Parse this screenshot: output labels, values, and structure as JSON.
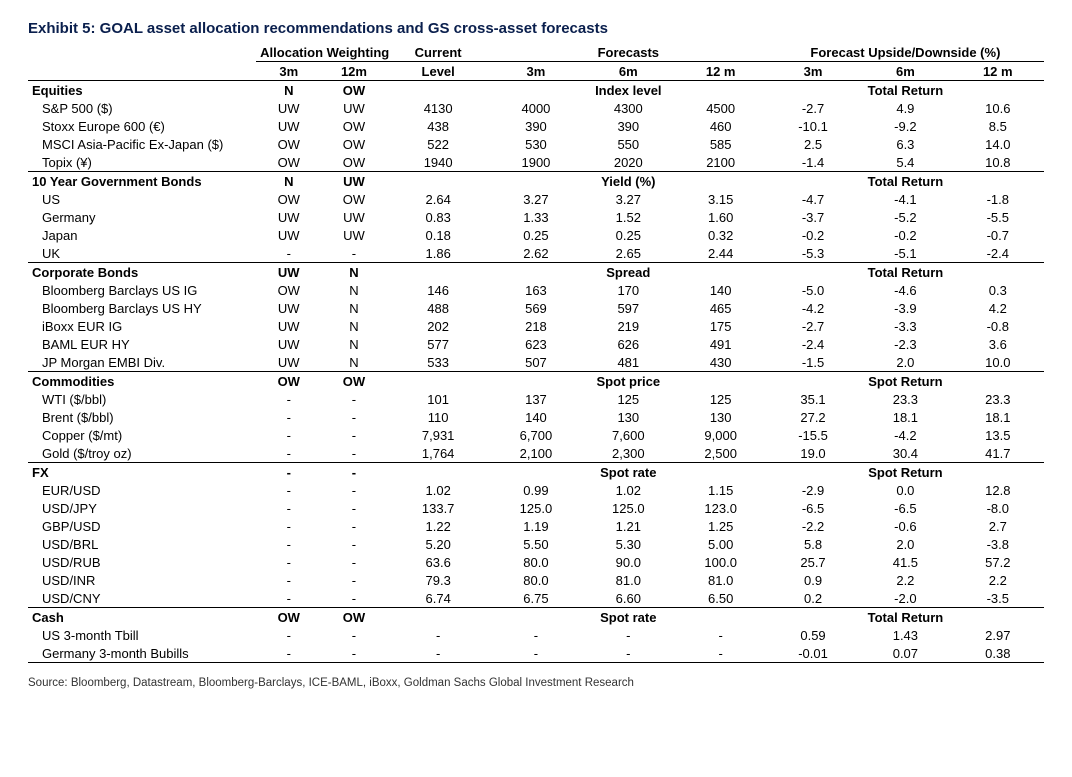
{
  "title": "Exhibit 5: GOAL asset allocation recommendations and GS cross-asset forecasts",
  "headers": {
    "group_alloc": "Allocation Weighting",
    "group_current": "Current",
    "group_forecasts": "Forecasts",
    "group_updown": "Forecast Upside/Downside (%)",
    "aw3m": "3m",
    "aw12m": "12m",
    "level": "Level",
    "f3m": "3m",
    "f6m": "6m",
    "f12m": "12 m",
    "u3m": "3m",
    "u6m": "6m",
    "u12m": "12 m"
  },
  "sections": [
    {
      "name": "Equities",
      "aw3m": "N",
      "aw12m": "OW",
      "forecast_label": "Index level",
      "return_label": "Total Return",
      "rows": [
        {
          "name": "S&P 500 ($)",
          "aw3m": "UW",
          "aw12m": "UW",
          "cur": "4130",
          "f3m": "4000",
          "f6m": "4300",
          "f12m": "4500",
          "u3m": "-2.7",
          "u6m": "4.9",
          "u12m": "10.6"
        },
        {
          "name": "Stoxx Europe 600 (€)",
          "aw3m": "UW",
          "aw12m": "OW",
          "cur": "438",
          "f3m": "390",
          "f6m": "390",
          "f12m": "460",
          "u3m": "-10.1",
          "u6m": "-9.2",
          "u12m": "8.5"
        },
        {
          "name": "MSCI Asia-Pacific Ex-Japan ($)",
          "aw3m": "OW",
          "aw12m": "OW",
          "cur": "522",
          "f3m": "530",
          "f6m": "550",
          "f12m": "585",
          "u3m": "2.5",
          "u6m": "6.3",
          "u12m": "14.0"
        },
        {
          "name": "Topix (¥)",
          "aw3m": "OW",
          "aw12m": "OW",
          "cur": "1940",
          "f3m": "1900",
          "f6m": "2020",
          "f12m": "2100",
          "u3m": "-1.4",
          "u6m": "5.4",
          "u12m": "10.8"
        }
      ]
    },
    {
      "name": "10 Year Government Bonds",
      "aw3m": "N",
      "aw12m": "UW",
      "forecast_label": "Yield (%)",
      "return_label": "Total Return",
      "rows": [
        {
          "name": "US",
          "aw3m": "OW",
          "aw12m": "OW",
          "cur": "2.64",
          "f3m": "3.27",
          "f6m": "3.27",
          "f12m": "3.15",
          "u3m": "-4.7",
          "u6m": "-4.1",
          "u12m": "-1.8"
        },
        {
          "name": "Germany",
          "aw3m": "UW",
          "aw12m": "UW",
          "cur": "0.83",
          "f3m": "1.33",
          "f6m": "1.52",
          "f12m": "1.60",
          "u3m": "-3.7",
          "u6m": "-5.2",
          "u12m": "-5.5"
        },
        {
          "name": "Japan",
          "aw3m": "UW",
          "aw12m": "UW",
          "cur": "0.18",
          "f3m": "0.25",
          "f6m": "0.25",
          "f12m": "0.32",
          "u3m": "-0.2",
          "u6m": "-0.2",
          "u12m": "-0.7"
        },
        {
          "name": "UK",
          "aw3m": "-",
          "aw12m": "-",
          "cur": "1.86",
          "f3m": "2.62",
          "f6m": "2.65",
          "f12m": "2.44",
          "u3m": "-5.3",
          "u6m": "-5.1",
          "u12m": "-2.4"
        }
      ]
    },
    {
      "name": "Corporate Bonds",
      "aw3m": "UW",
      "aw12m": "N",
      "forecast_label": "Spread",
      "return_label": "Total Return",
      "rows": [
        {
          "name": "Bloomberg Barclays US IG",
          "aw3m": "OW",
          "aw12m": "N",
          "cur": "146",
          "f3m": "163",
          "f6m": "170",
          "f12m": "140",
          "u3m": "-5.0",
          "u6m": "-4.6",
          "u12m": "0.3"
        },
        {
          "name": "Bloomberg Barclays US HY",
          "aw3m": "UW",
          "aw12m": "N",
          "cur": "488",
          "f3m": "569",
          "f6m": "597",
          "f12m": "465",
          "u3m": "-4.2",
          "u6m": "-3.9",
          "u12m": "4.2"
        },
        {
          "name": "iBoxx EUR IG",
          "aw3m": "UW",
          "aw12m": "N",
          "cur": "202",
          "f3m": "218",
          "f6m": "219",
          "f12m": "175",
          "u3m": "-2.7",
          "u6m": "-3.3",
          "u12m": "-0.8"
        },
        {
          "name": "BAML EUR HY",
          "aw3m": "UW",
          "aw12m": "N",
          "cur": "577",
          "f3m": "623",
          "f6m": "626",
          "f12m": "491",
          "u3m": "-2.4",
          "u6m": "-2.3",
          "u12m": "3.6"
        },
        {
          "name": "JP Morgan EMBI Div.",
          "aw3m": "UW",
          "aw12m": "N",
          "cur": "533",
          "f3m": "507",
          "f6m": "481",
          "f12m": "430",
          "u3m": "-1.5",
          "u6m": "2.0",
          "u12m": "10.0"
        }
      ]
    },
    {
      "name": "Commodities",
      "aw3m": "OW",
      "aw12m": "OW",
      "forecast_label": "Spot price",
      "return_label": "Spot Return",
      "rows": [
        {
          "name": "WTI ($/bbl)",
          "aw3m": "-",
          "aw12m": "-",
          "cur": "101",
          "f3m": "137",
          "f6m": "125",
          "f12m": "125",
          "u3m": "35.1",
          "u6m": "23.3",
          "u12m": "23.3"
        },
        {
          "name": "Brent ($/bbl)",
          "aw3m": "-",
          "aw12m": "-",
          "cur": "110",
          "f3m": "140",
          "f6m": "130",
          "f12m": "130",
          "u3m": "27.2",
          "u6m": "18.1",
          "u12m": "18.1"
        },
        {
          "name": "Copper ($/mt)",
          "aw3m": "-",
          "aw12m": "-",
          "cur": "7,931",
          "f3m": "6,700",
          "f6m": "7,600",
          "f12m": "9,000",
          "u3m": "-15.5",
          "u6m": "-4.2",
          "u12m": "13.5"
        },
        {
          "name": "Gold ($/troy oz)",
          "aw3m": "-",
          "aw12m": "-",
          "cur": "1,764",
          "f3m": "2,100",
          "f6m": "2,300",
          "f12m": "2,500",
          "u3m": "19.0",
          "u6m": "30.4",
          "u12m": "41.7"
        }
      ]
    },
    {
      "name": "FX",
      "aw3m": "-",
      "aw12m": "-",
      "forecast_label": "Spot rate",
      "return_label": "Spot Return",
      "rows": [
        {
          "name": "EUR/USD",
          "aw3m": "-",
          "aw12m": "-",
          "cur": "1.02",
          "f3m": "0.99",
          "f6m": "1.02",
          "f12m": "1.15",
          "u3m": "-2.9",
          "u6m": "0.0",
          "u12m": "12.8"
        },
        {
          "name": "USD/JPY",
          "aw3m": "-",
          "aw12m": "-",
          "cur": "133.7",
          "f3m": "125.0",
          "f6m": "125.0",
          "f12m": "123.0",
          "u3m": "-6.5",
          "u6m": "-6.5",
          "u12m": "-8.0"
        },
        {
          "name": "GBP/USD",
          "aw3m": "-",
          "aw12m": "-",
          "cur": "1.22",
          "f3m": "1.19",
          "f6m": "1.21",
          "f12m": "1.25",
          "u3m": "-2.2",
          "u6m": "-0.6",
          "u12m": "2.7"
        },
        {
          "name": "USD/BRL",
          "aw3m": "-",
          "aw12m": "-",
          "cur": "5.20",
          "f3m": "5.50",
          "f6m": "5.30",
          "f12m": "5.00",
          "u3m": "5.8",
          "u6m": "2.0",
          "u12m": "-3.8"
        },
        {
          "name": "USD/RUB",
          "aw3m": "-",
          "aw12m": "-",
          "cur": "63.6",
          "f3m": "80.0",
          "f6m": "90.0",
          "f12m": "100.0",
          "u3m": "25.7",
          "u6m": "41.5",
          "u12m": "57.2"
        },
        {
          "name": "USD/INR",
          "aw3m": "-",
          "aw12m": "-",
          "cur": "79.3",
          "f3m": "80.0",
          "f6m": "81.0",
          "f12m": "81.0",
          "u3m": "0.9",
          "u6m": "2.2",
          "u12m": "2.2"
        },
        {
          "name": "USD/CNY",
          "aw3m": "-",
          "aw12m": "-",
          "cur": "6.74",
          "f3m": "6.75",
          "f6m": "6.60",
          "f12m": "6.50",
          "u3m": "0.2",
          "u6m": "-2.0",
          "u12m": "-3.5"
        }
      ]
    },
    {
      "name": "Cash",
      "aw3m": "OW",
      "aw12m": "OW",
      "forecast_label": "Spot rate",
      "return_label": "Total Return",
      "rows": [
        {
          "name": "US 3-month Tbill",
          "aw3m": "-",
          "aw12m": "-",
          "cur": "-",
          "f3m": "-",
          "f6m": "-",
          "f12m": "-",
          "u3m": "0.59",
          "u6m": "1.43",
          "u12m": "2.97"
        },
        {
          "name": "Germany 3-month Bubills",
          "aw3m": "-",
          "aw12m": "-",
          "cur": "-",
          "f3m": "-",
          "f6m": "-",
          "f12m": "-",
          "u3m": "-0.01",
          "u6m": "0.07",
          "u12m": "0.38"
        }
      ]
    }
  ],
  "source": "Source: Bloomberg, Datastream, Bloomberg-Barclays, ICE-BAML, iBoxx, Goldman Sachs Global Investment Research"
}
